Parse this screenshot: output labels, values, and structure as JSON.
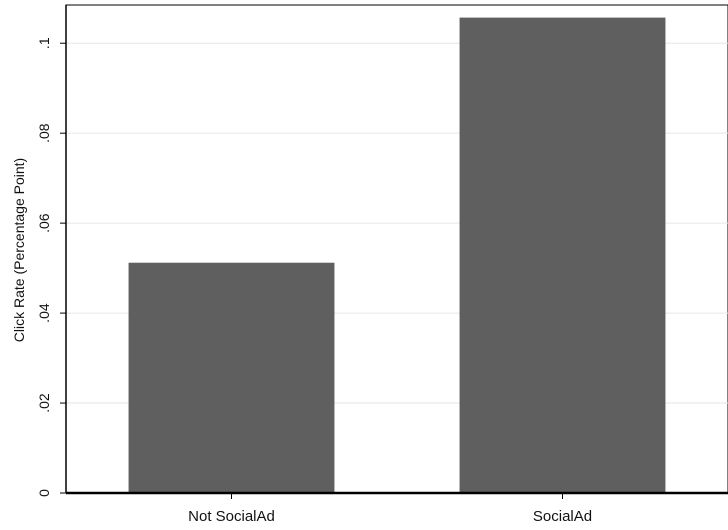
{
  "chart_data": {
    "type": "bar",
    "title": "",
    "xlabel": "",
    "ylabel": "Click Rate (Percentage Point)",
    "categories": [
      "Not SocialAd",
      "SocialAd"
    ],
    "values": [
      0.0512,
      0.1057
    ],
    "ylim": [
      0,
      0.1085
    ],
    "yticks": [
      0,
      0.02,
      0.04,
      0.06,
      0.08,
      0.1
    ],
    "ytick_labels": [
      "0",
      ".02",
      ".04",
      ".06",
      ".08",
      ".1"
    ],
    "grid": true,
    "legend": "none",
    "colors": {
      "bar": "#5f5f5f",
      "grid": "#e6e6e6",
      "axis": "#000000",
      "background": "#ffffff"
    }
  }
}
